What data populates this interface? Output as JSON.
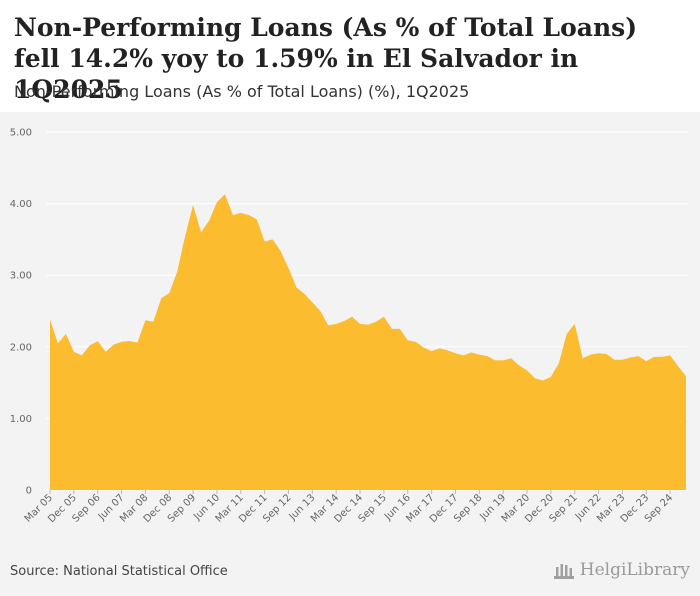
{
  "header": {
    "title": "Non-Performing Loans (As % of Total Loans) fell 14.2% yoy to 1.59% in El Salvador in 1Q2025",
    "subtitle": "Non-Performing Loans (As % of Total Loans) (%), 1Q2025"
  },
  "footer": {
    "source": "Source: National Statistical Office",
    "brand": "HelgiLibrary"
  },
  "colors": {
    "area": "#fbbc2f",
    "background": "#f3f3f3",
    "grid": "#ffffff"
  },
  "chart_data": {
    "type": "area",
    "title": "Non-Performing Loans (As % of Total Loans) fell 14.2% yoy to 1.59% in El Salvador in 1Q2025",
    "subtitle": "Non-Performing Loans (As % of Total Loans) (%), 1Q2025",
    "y_ticks": [
      "0",
      "1.00",
      "2.00",
      "3.00",
      "4.00",
      "5.00"
    ],
    "ylim": [
      0,
      5
    ],
    "x_tick_labels": [
      "Mar 05",
      "Dec 05",
      "Sep 06",
      "Jun 07",
      "Mar 08",
      "Dec 08",
      "Sep 09",
      "Jun 10",
      "Mar 11",
      "Dec 11",
      "Sep 12",
      "Jun 13",
      "Mar 14",
      "Dec 14",
      "Sep 15",
      "Jun 16",
      "Mar 17",
      "Dec 17",
      "Sep 18",
      "Jun 19",
      "Mar 20",
      "Dec 20",
      "Sep 21",
      "Jun 22",
      "Mar 23",
      "Dec 23",
      "Sep 24"
    ],
    "grid": true,
    "legend": "none",
    "series": [
      {
        "values": [
          2.38,
          2.05,
          2.18,
          1.93,
          1.88,
          2.02,
          2.08,
          1.93,
          2.03,
          2.07,
          2.08,
          2.06,
          2.37,
          2.35,
          2.68,
          2.75,
          3.05,
          3.55,
          3.98,
          3.6,
          3.76,
          4.02,
          4.13,
          3.84,
          3.87,
          3.84,
          3.78,
          3.47,
          3.5,
          3.34,
          3.1,
          2.83,
          2.74,
          2.62,
          2.5,
          2.3,
          2.32,
          2.36,
          2.42,
          2.32,
          2.31,
          2.35,
          2.42,
          2.25,
          2.25,
          2.09,
          2.07,
          1.99,
          1.94,
          1.98,
          1.95,
          1.91,
          1.88,
          1.92,
          1.89,
          1.87,
          1.81,
          1.81,
          1.84,
          1.74,
          1.67,
          1.56,
          1.53,
          1.58,
          1.77,
          2.18,
          2.32,
          1.84,
          1.89,
          1.91,
          1.9,
          1.82,
          1.82,
          1.85,
          1.87,
          1.8,
          1.86,
          1.86,
          1.88,
          1.73,
          1.59
        ]
      }
    ]
  }
}
